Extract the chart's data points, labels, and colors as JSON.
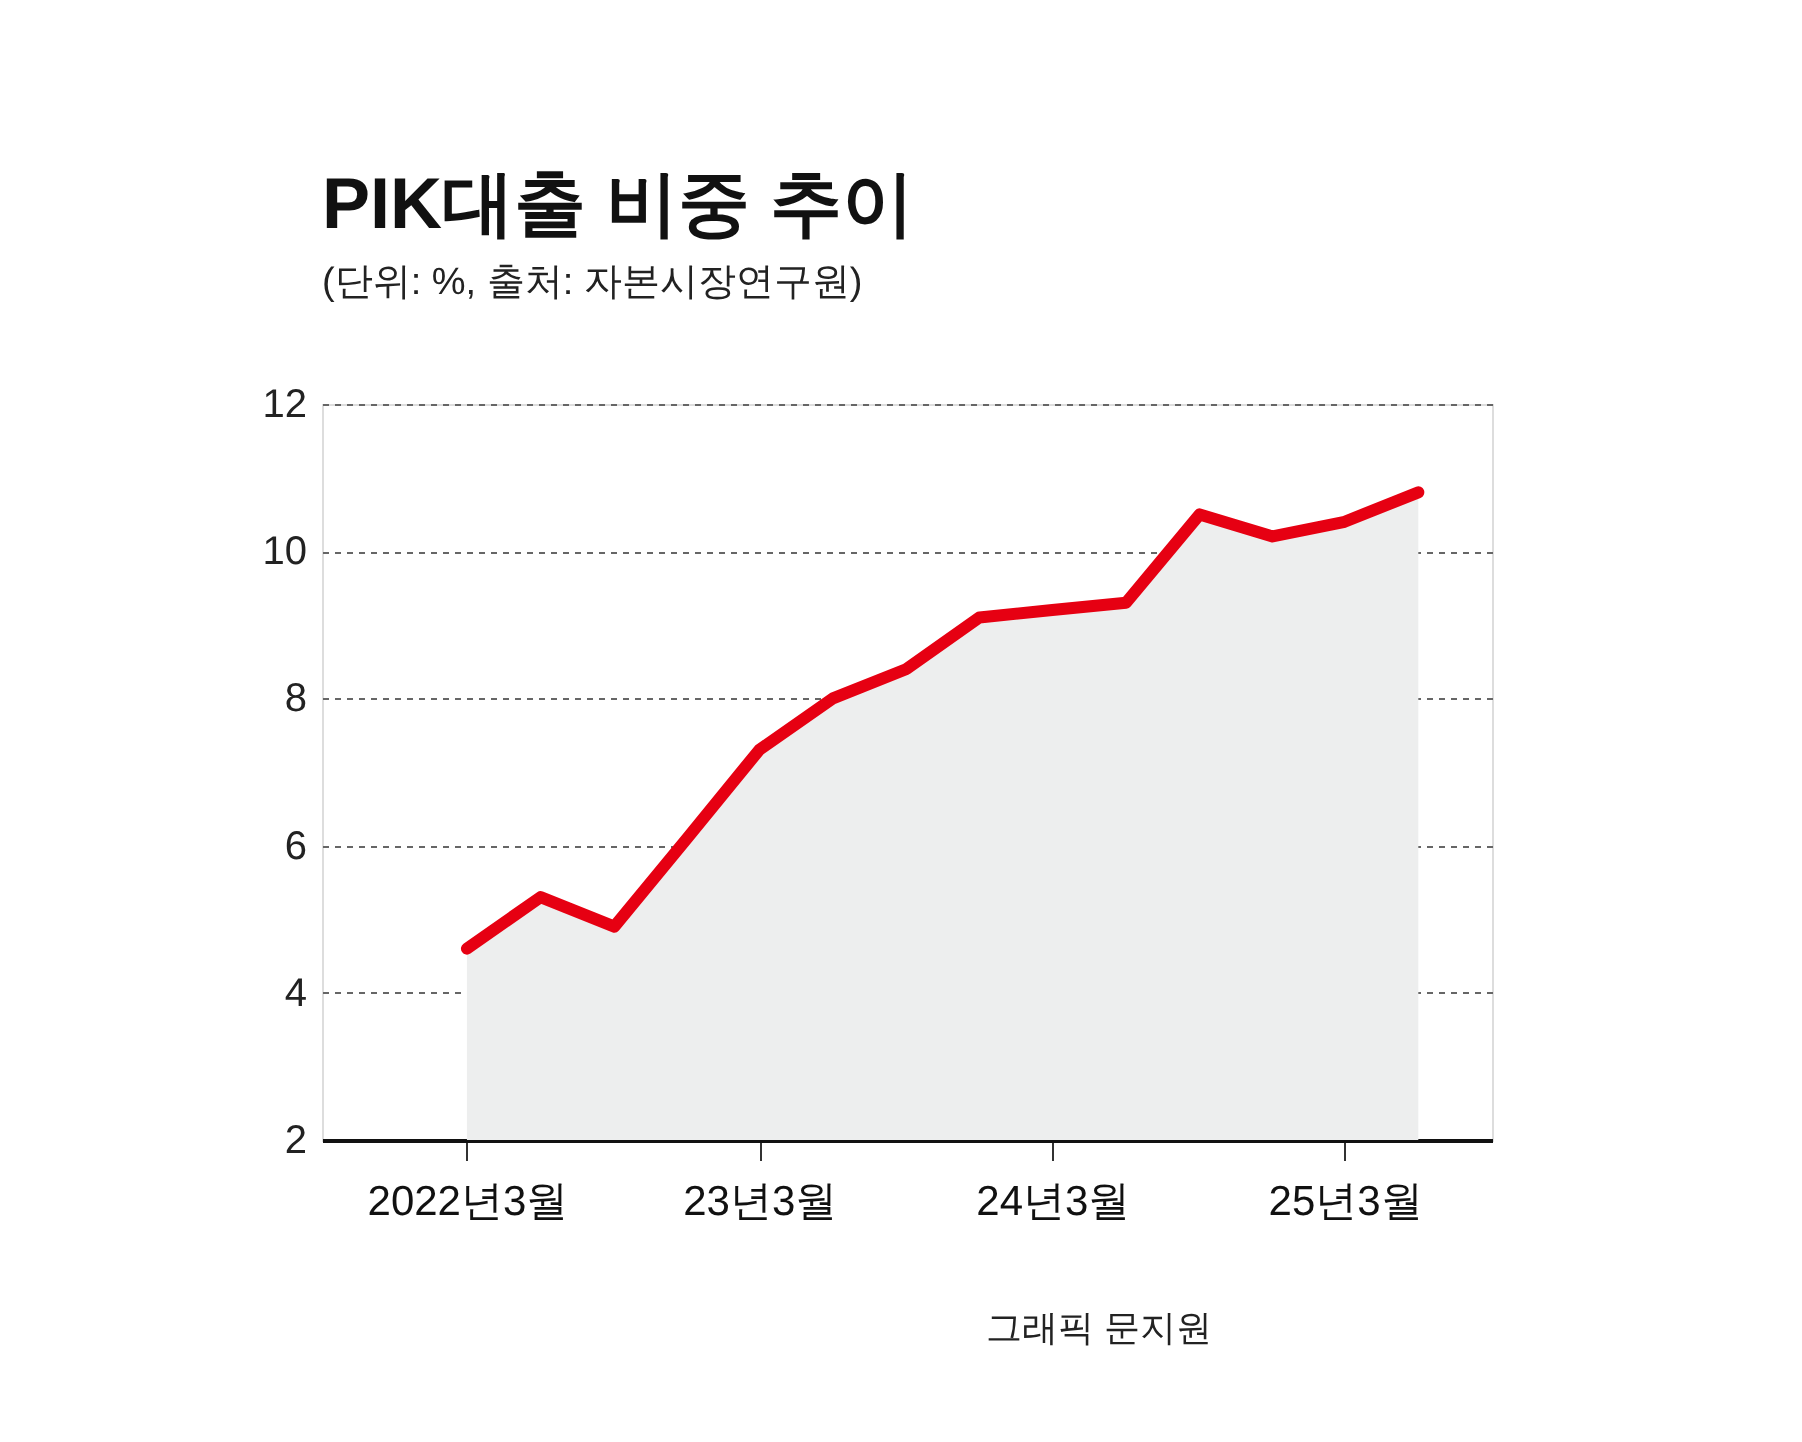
{
  "chart_data": {
    "type": "area",
    "title": "PIK대출 비중 추이",
    "subtitle": "(단위: %, 출처: 자본시장연구원)",
    "x": [
      "2022-03",
      "2022-06",
      "2022-09",
      "2022-12",
      "2023-03",
      "2023-06",
      "2023-09",
      "2023-12",
      "2024-03",
      "2024-06",
      "2024-09",
      "2024-12",
      "2025-03",
      "2025-06"
    ],
    "series": [
      {
        "color": "#e60012",
        "values": [
          4.6,
          5.3,
          4.9,
          6.1,
          7.3,
          8.0,
          8.4,
          9.1,
          9.2,
          9.3,
          10.5,
          10.2,
          10.4,
          10.8
        ]
      }
    ],
    "xlim": [
      "2021-09",
      "2025-09"
    ],
    "xticks": [
      {
        "value": "2022-03",
        "label": "2022년3월"
      },
      {
        "value": "2023-03",
        "label": "23년3월"
      },
      {
        "value": "2024-03",
        "label": "24년3월"
      },
      {
        "value": "2025-03",
        "label": "25년3월"
      }
    ],
    "ylim": [
      2,
      12
    ],
    "yticks": [
      2,
      4,
      6,
      8,
      10,
      12
    ],
    "grid": "y",
    "marker": "none",
    "line_style": "solid",
    "annotations": [
      "그래픽 문지원"
    ]
  }
}
